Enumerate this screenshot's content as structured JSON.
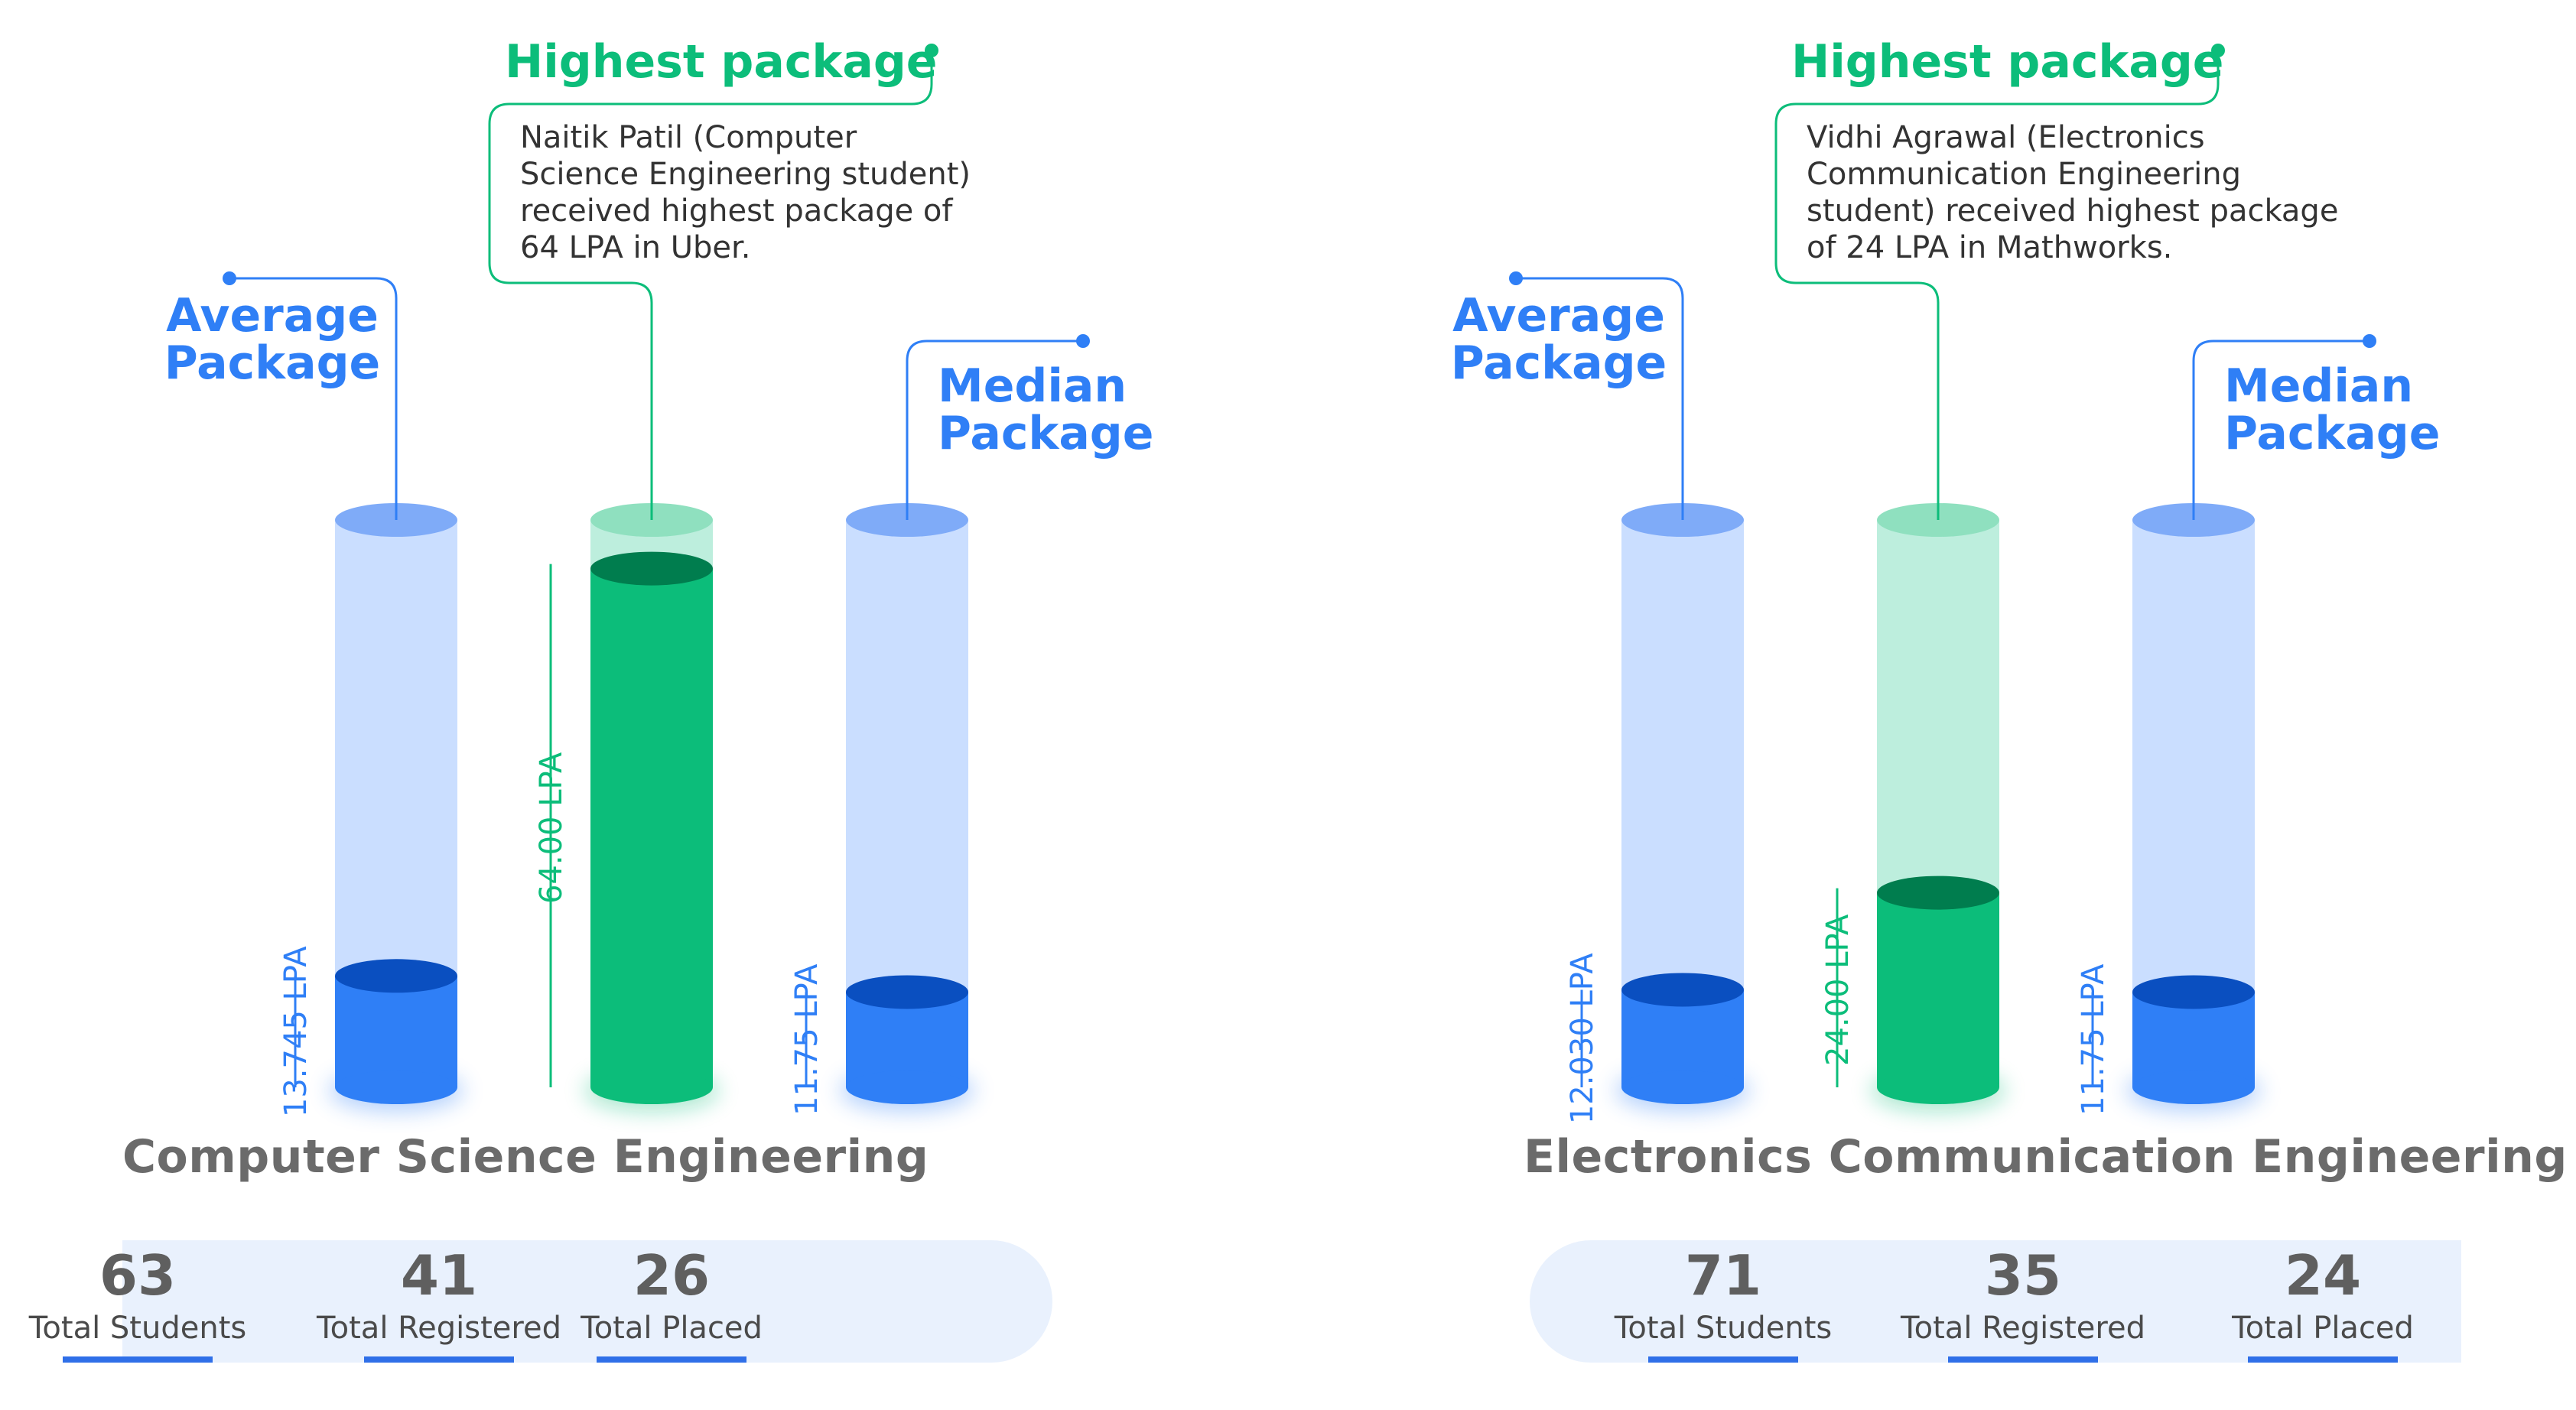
{
  "colors": {
    "blue": "#2f7ff6",
    "blue_dark": "#0a4fc0",
    "blue_light": "#cadeff",
    "blue_cap": "#7fabf8",
    "green": "#0cbd7a",
    "green_dark": "#007d4e",
    "green_light": "#bdeedd",
    "green_cap": "#8fe0bf",
    "title_gray": "#6b6b6b"
  },
  "chart_data": [
    {
      "type": "bar",
      "title": "Computer Science Engineering",
      "categories": [
        "Average Package",
        "Highest package",
        "Median Package"
      ],
      "values": [
        13.745,
        64.0,
        11.75
      ],
      "value_labels": [
        "13.745 LPA",
        "64.00 LPA",
        "11.75 LPA"
      ],
      "highest_note": "Naitik Patil (Computer\nScience Engineering student)\nreceived highest package of\n64 LPA in Uber.",
      "stats": [
        {
          "value": "63",
          "label": "Total Students"
        },
        {
          "value": "41",
          "label": "Total Registered"
        },
        {
          "value": "26",
          "label": "Total Placed"
        }
      ]
    },
    {
      "type": "bar",
      "title": "Electronics Communication Engineering",
      "categories": [
        "Average Package",
        "Highest package",
        "Median Package"
      ],
      "values": [
        12.03,
        24.0,
        11.75
      ],
      "value_labels": [
        "12.030 LPA",
        "24.00 LPA",
        "11.75 LPA"
      ],
      "highest_note": "Vidhi Agrawal (Electronics\nCommunication Engineering\nstudent) received highest package\nof 24 LPA in Mathworks.",
      "stats": [
        {
          "value": "71",
          "label": "Total Students"
        },
        {
          "value": "35",
          "label": "Total Registered"
        },
        {
          "value": "24",
          "label": "Total Placed"
        }
      ]
    }
  ]
}
